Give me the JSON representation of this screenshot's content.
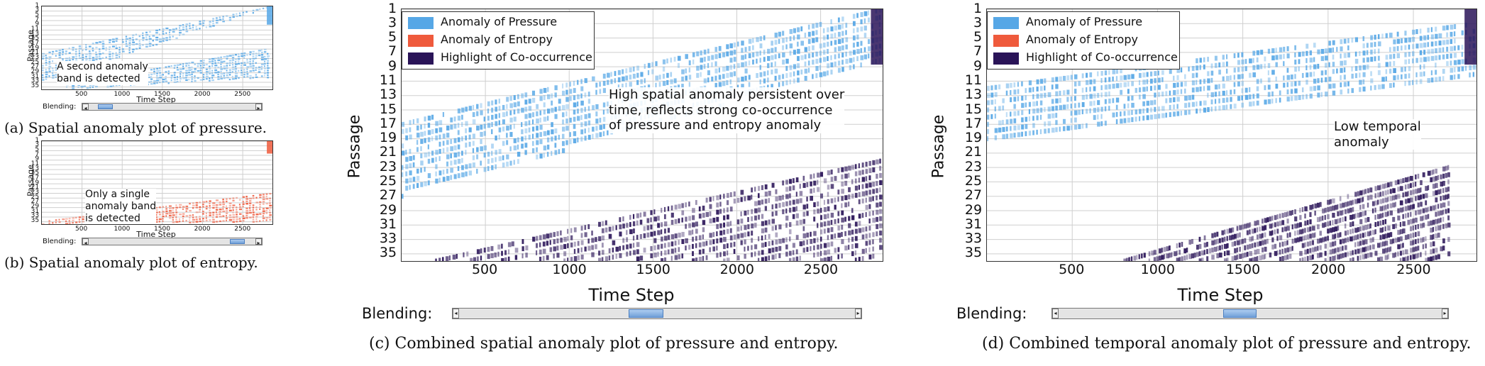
{
  "colors": {
    "pressure": "#56a7e6",
    "entropy": "#ef5a3c",
    "cooccurrence": "#2a1458"
  },
  "panels": [
    {
      "id": "a",
      "caption": "(a) Spatial anomaly plot of pressure.",
      "ylabel": "Passage",
      "xlabel": "Time Step",
      "blending_label": "Blending:",
      "annotation": "A second anomaly\nband is detected"
    },
    {
      "id": "b",
      "caption": "(b) Spatial anomaly plot of entropy.",
      "ylabel": "Passage",
      "xlabel": "Time Step",
      "blending_label": "Blending:",
      "annotation": "Only a single\nanomaly band\nis detected"
    },
    {
      "id": "c",
      "caption": "(c) Combined spatial anomaly plot of pressure and entropy.",
      "ylabel": "Passage",
      "xlabel": "Time Step",
      "blending_label": "Blending:",
      "annotation": "High spatial anomaly persistent over\ntime, reflects strong co-occurrence\nof pressure and entropy anomaly",
      "legend": [
        "Anomaly of Pressure",
        "Anomaly of Entropy",
        "Highlight of Co-occurrence"
      ]
    },
    {
      "id": "d",
      "caption": "(d) Combined temporal anomaly plot of pressure and entropy.",
      "ylabel": "Passage",
      "xlabel": "Time Step",
      "blending_label": "Blending:",
      "annotation": "Low temporal\nanomaly",
      "legend": [
        "Anomaly of Pressure",
        "Anomaly of Entropy",
        "Highlight of Co-occurrence"
      ]
    }
  ],
  "chart_data": [
    {
      "type": "heatmap",
      "panel": "a",
      "xlabel": "Time Step",
      "ylabel": "Passage",
      "x_ticks": [
        500,
        1000,
        1500,
        2000,
        2500
      ],
      "y_ticks": [
        1,
        3,
        5,
        7,
        9,
        11,
        13,
        15,
        17,
        19,
        21,
        23,
        25,
        27,
        29,
        31,
        33,
        35
      ],
      "xlim": [
        0,
        2870
      ],
      "ylim": [
        1,
        36
      ],
      "bands": [
        {
          "series": "pressure",
          "x": [
            0,
            2870
          ],
          "y_start": [
            21,
            1
          ],
          "y_end": [
            33,
            1
          ]
        },
        {
          "series": "pressure",
          "x": [
            300,
            2800
          ],
          "y_start": [
            34,
            19
          ],
          "y_end": [
            36,
            31
          ]
        }
      ],
      "slider_position": 0.06
    },
    {
      "type": "heatmap",
      "panel": "b",
      "xlabel": "Time Step",
      "ylabel": "Passage",
      "x_ticks": [
        500,
        1000,
        1500,
        2000,
        2500
      ],
      "y_ticks": [
        1,
        3,
        5,
        7,
        9,
        11,
        13,
        15,
        17,
        19,
        21,
        23,
        25,
        27,
        29,
        31,
        33,
        35
      ],
      "xlim": [
        0,
        2870
      ],
      "ylim": [
        1,
        36
      ],
      "bands": [
        {
          "series": "entropy",
          "x": [
            0,
            2870
          ],
          "y_start": [
            35,
            23
          ],
          "y_end": [
            36,
            35
          ]
        }
      ],
      "slider_position": 0.93
    },
    {
      "type": "heatmap",
      "panel": "c",
      "xlabel": "Time Step",
      "ylabel": "Passage",
      "x_ticks": [
        500,
        1000,
        1500,
        2000,
        2500
      ],
      "y_ticks": [
        1,
        3,
        5,
        7,
        9,
        11,
        13,
        15,
        17,
        19,
        21,
        23,
        25,
        27,
        29,
        31,
        33,
        35
      ],
      "xlim": [
        0,
        2870
      ],
      "ylim": [
        1,
        36
      ],
      "legend_position": "top-left",
      "bands": [
        {
          "series": "pressure",
          "x": [
            0,
            2870
          ],
          "y_start": [
            17,
            1
          ],
          "y_end": [
            27,
            8
          ]
        },
        {
          "series": "cooccurrence",
          "x": [
            200,
            2870
          ],
          "y_start": [
            36,
            22
          ],
          "y_end": [
            36,
            36
          ]
        }
      ],
      "slider_position": 0.47
    },
    {
      "type": "heatmap",
      "panel": "d",
      "xlabel": "Time Step",
      "ylabel": "Passage",
      "x_ticks": [
        500,
        1000,
        1500,
        2000,
        2500
      ],
      "y_ticks": [
        1,
        3,
        5,
        7,
        9,
        11,
        13,
        15,
        17,
        19,
        21,
        23,
        25,
        27,
        29,
        31,
        33,
        35
      ],
      "xlim": [
        0,
        2870
      ],
      "ylim": [
        1,
        36
      ],
      "legend_position": "top-left",
      "bands": [
        {
          "series": "pressure",
          "x": [
            0,
            2870
          ],
          "y_start": [
            12,
            3
          ],
          "y_end": [
            20,
            10
          ]
        },
        {
          "series": "cooccurrence",
          "x": [
            800,
            2700
          ],
          "y_start": [
            36,
            23
          ],
          "y_end": [
            36,
            36
          ]
        }
      ],
      "slider_position": 0.47
    }
  ]
}
